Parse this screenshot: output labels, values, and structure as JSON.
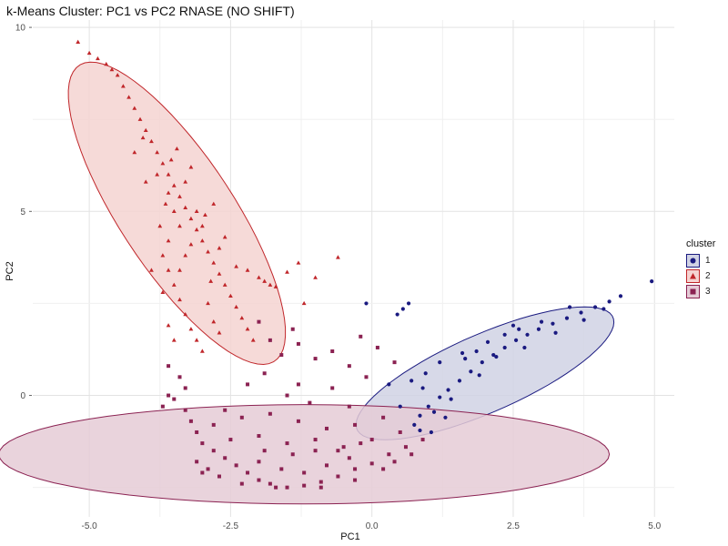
{
  "chart_data": {
    "type": "scatter",
    "title": "k-Means Cluster: PC1 vs PC2 RNASE (NO SHIFT)",
    "xlabel": "PC1",
    "ylabel": "PC2",
    "xlim": [
      -6.0,
      5.35
    ],
    "ylim": [
      -3.3,
      10.2
    ],
    "x_ticks": [
      -5.0,
      -2.5,
      0.0,
      2.5,
      5.0
    ],
    "x_tick_labels": [
      "-5.0",
      "-2.5",
      "0.0",
      "2.5",
      "5.0"
    ],
    "y_ticks": [
      0,
      5,
      10
    ],
    "y_tick_labels": [
      "0",
      "5",
      "10"
    ],
    "grid": true,
    "legend": {
      "title": "cluster",
      "placement": "right"
    },
    "series": [
      {
        "name": "1",
        "marker": "circle",
        "color": "#1a1a80",
        "fill": "#1a1a80",
        "ellipse": {
          "cx": 2.0,
          "cy": 0.6,
          "rx": 2.75,
          "ry": 0.95,
          "angle_deg": 36.5,
          "fill": "#d0d2e4",
          "stroke": "#1a1a80"
        },
        "points": [
          [
            4.95,
            3.1
          ],
          [
            4.4,
            2.7
          ],
          [
            4.2,
            2.55
          ],
          [
            3.95,
            2.4
          ],
          [
            3.7,
            2.25
          ],
          [
            3.45,
            2.1
          ],
          [
            3.2,
            1.95
          ],
          [
            2.95,
            1.8
          ],
          [
            2.75,
            1.65
          ],
          [
            2.55,
            1.5
          ],
          [
            2.35,
            1.3
          ],
          [
            2.15,
            1.1
          ],
          [
            1.95,
            0.9
          ],
          [
            1.75,
            0.65
          ],
          [
            1.55,
            0.4
          ],
          [
            1.35,
            0.15
          ],
          [
            1.2,
            -0.05
          ],
          [
            1.0,
            -0.3
          ],
          [
            0.85,
            -0.55
          ],
          [
            0.75,
            -0.8
          ],
          [
            2.5,
            1.9
          ],
          [
            2.05,
            1.45
          ],
          [
            1.6,
            1.15
          ],
          [
            1.2,
            0.9
          ],
          [
            0.95,
            0.6
          ],
          [
            0.7,
            0.4
          ],
          [
            0.65,
            2.5
          ],
          [
            0.55,
            2.35
          ],
          [
            0.45,
            2.2
          ],
          [
            -0.1,
            2.5
          ],
          [
            0.3,
            0.3
          ],
          [
            0.5,
            -0.3
          ],
          [
            1.65,
            1.0
          ],
          [
            2.2,
            1.05
          ],
          [
            2.7,
            1.3
          ],
          [
            3.25,
            1.7
          ],
          [
            3.75,
            2.05
          ],
          [
            4.1,
            2.35
          ],
          [
            3.5,
            2.4
          ],
          [
            3.0,
            2.0
          ],
          [
            2.6,
            1.8
          ],
          [
            1.9,
            0.55
          ],
          [
            1.4,
            -0.1
          ],
          [
            1.1,
            -0.45
          ],
          [
            0.9,
            0.2
          ],
          [
            2.35,
            1.65
          ],
          [
            1.85,
            1.2
          ],
          [
            0.85,
            -0.95
          ],
          [
            1.05,
            -1.0
          ],
          [
            1.3,
            -0.6
          ]
        ]
      },
      {
        "name": "2",
        "marker": "triangle",
        "color": "#c0262a",
        "fill": "#c0262a",
        "ellipse": {
          "cx": -3.45,
          "cy": 4.95,
          "rx": 4.4,
          "ry": 1.1,
          "angle_deg": 111.7,
          "fill": "#f5d3d1",
          "stroke": "#c0262a"
        },
        "points": [
          [
            -5.2,
            9.6
          ],
          [
            -5.0,
            9.3
          ],
          [
            -4.85,
            9.15
          ],
          [
            -4.7,
            9.0
          ],
          [
            -4.6,
            8.85
          ],
          [
            -4.5,
            8.7
          ],
          [
            -4.4,
            8.4
          ],
          [
            -4.3,
            8.1
          ],
          [
            -4.2,
            7.8
          ],
          [
            -4.1,
            7.5
          ],
          [
            -4.0,
            7.2
          ],
          [
            -3.9,
            6.9
          ],
          [
            -3.8,
            6.6
          ],
          [
            -3.7,
            6.3
          ],
          [
            -3.6,
            6.0
          ],
          [
            -3.5,
            5.7
          ],
          [
            -3.4,
            5.4
          ],
          [
            -3.3,
            5.1
          ],
          [
            -3.2,
            4.8
          ],
          [
            -3.1,
            4.5
          ],
          [
            -3.0,
            4.2
          ],
          [
            -2.9,
            3.9
          ],
          [
            -2.8,
            3.6
          ],
          [
            -2.7,
            3.3
          ],
          [
            -2.6,
            3.0
          ],
          [
            -2.5,
            2.7
          ],
          [
            -2.4,
            2.4
          ],
          [
            -2.3,
            2.1
          ],
          [
            -2.2,
            1.8
          ],
          [
            -2.1,
            1.5
          ],
          [
            -3.8,
            6.0
          ],
          [
            -3.6,
            5.5
          ],
          [
            -3.5,
            5.0
          ],
          [
            -3.4,
            4.6
          ],
          [
            -3.6,
            4.2
          ],
          [
            -3.7,
            3.8
          ],
          [
            -3.6,
            3.4
          ],
          [
            -3.5,
            3.0
          ],
          [
            -3.4,
            2.6
          ],
          [
            -3.3,
            2.2
          ],
          [
            -3.2,
            1.8
          ],
          [
            -3.1,
            1.5
          ],
          [
            -3.0,
            1.2
          ],
          [
            -3.5,
            1.5
          ],
          [
            -3.6,
            1.9
          ],
          [
            -3.3,
            5.8
          ],
          [
            -3.2,
            6.2
          ],
          [
            -3.1,
            5.0
          ],
          [
            -3.0,
            4.6
          ],
          [
            -2.95,
            4.9
          ],
          [
            -2.8,
            5.2
          ],
          [
            -2.7,
            4.0
          ],
          [
            -2.6,
            4.3
          ],
          [
            -2.4,
            3.5
          ],
          [
            -2.2,
            3.4
          ],
          [
            -2.0,
            3.2
          ],
          [
            -1.9,
            3.1
          ],
          [
            -1.8,
            3.0
          ],
          [
            -1.7,
            2.95
          ],
          [
            -1.5,
            3.35
          ],
          [
            -1.3,
            3.6
          ],
          [
            -1.0,
            3.2
          ],
          [
            -0.6,
            3.75
          ],
          [
            -1.2,
            2.5
          ],
          [
            -3.7,
            2.8
          ],
          [
            -3.9,
            3.4
          ],
          [
            -3.75,
            4.6
          ],
          [
            -4.0,
            5.8
          ],
          [
            -4.2,
            6.6
          ],
          [
            -4.05,
            7.0
          ],
          [
            -3.4,
            3.4
          ],
          [
            -3.3,
            3.8
          ],
          [
            -3.2,
            4.1
          ],
          [
            -2.9,
            2.5
          ],
          [
            -2.8,
            2.0
          ],
          [
            -2.7,
            1.7
          ],
          [
            -3.55,
            6.4
          ],
          [
            -3.45,
            6.7
          ],
          [
            -3.65,
            5.2
          ],
          [
            -2.85,
            3.1
          ]
        ]
      },
      {
        "name": "3",
        "marker": "square",
        "color": "#8b2252",
        "fill": "#8b2252",
        "ellipse": {
          "cx": -1.2,
          "cy": -1.6,
          "rx": 5.4,
          "ry": 1.35,
          "angle_deg": 0,
          "fill": "#e5cbd6",
          "stroke": "#8b2252"
        },
        "points": [
          [
            -3.6,
            0.8
          ],
          [
            -3.4,
            0.5
          ],
          [
            -3.3,
            0.2
          ],
          [
            -3.5,
            -0.1
          ],
          [
            -3.3,
            -0.4
          ],
          [
            -3.2,
            -0.7
          ],
          [
            -3.1,
            -1.0
          ],
          [
            -3.0,
            -1.3
          ],
          [
            -2.8,
            -1.5
          ],
          [
            -2.6,
            -1.7
          ],
          [
            -2.4,
            -1.9
          ],
          [
            -2.2,
            -2.1
          ],
          [
            -2.0,
            -2.3
          ],
          [
            -1.8,
            -2.4
          ],
          [
            -1.5,
            -2.5
          ],
          [
            -1.2,
            -2.45
          ],
          [
            -0.9,
            -2.35
          ],
          [
            -0.6,
            -2.2
          ],
          [
            -0.3,
            -2.0
          ],
          [
            0.0,
            -1.85
          ],
          [
            0.3,
            -1.6
          ],
          [
            0.6,
            -1.4
          ],
          [
            0.9,
            -1.2
          ],
          [
            -2.5,
            -1.2
          ],
          [
            -2.0,
            -1.1
          ],
          [
            -1.5,
            -1.3
          ],
          [
            -1.0,
            -1.5
          ],
          [
            -0.5,
            -1.4
          ],
          [
            0.0,
            -1.2
          ],
          [
            0.5,
            -1.0
          ],
          [
            -2.8,
            -0.8
          ],
          [
            -2.3,
            -0.6
          ],
          [
            -1.8,
            -0.5
          ],
          [
            -1.3,
            -0.7
          ],
          [
            -0.8,
            -0.9
          ],
          [
            -0.3,
            -0.8
          ],
          [
            0.2,
            -0.6
          ],
          [
            -2.0,
            -1.8
          ],
          [
            -1.6,
            -2.0
          ],
          [
            -1.2,
            -2.1
          ],
          [
            -0.8,
            -1.9
          ],
          [
            -0.4,
            -1.7
          ],
          [
            -2.9,
            -2.0
          ],
          [
            -3.1,
            -1.8
          ],
          [
            -1.9,
            -1.5
          ],
          [
            -1.0,
            -1.2
          ],
          [
            -0.2,
            -1.3
          ],
          [
            0.4,
            -1.8
          ],
          [
            -3.6,
            0.0
          ],
          [
            -3.7,
            -0.3
          ],
          [
            -2.6,
            -0.4
          ],
          [
            -2.2,
            0.3
          ],
          [
            -1.9,
            0.6
          ],
          [
            -1.5,
            0.0
          ],
          [
            -1.3,
            0.3
          ],
          [
            -1.1,
            -0.2
          ],
          [
            -0.7,
            0.2
          ],
          [
            -0.4,
            -0.3
          ],
          [
            -0.1,
            0.5
          ],
          [
            -1.3,
            1.4
          ],
          [
            -1.6,
            1.1
          ],
          [
            -1.8,
            1.5
          ],
          [
            -2.0,
            2.0
          ],
          [
            -1.4,
            1.8
          ],
          [
            -1.0,
            1.0
          ],
          [
            -0.7,
            1.2
          ],
          [
            -0.4,
            0.8
          ],
          [
            -0.2,
            1.6
          ],
          [
            0.1,
            1.3
          ],
          [
            0.4,
            0.9
          ],
          [
            -2.7,
            -2.2
          ],
          [
            -2.3,
            -2.4
          ],
          [
            -1.7,
            -2.5
          ],
          [
            -0.9,
            -2.5
          ],
          [
            -0.3,
            -2.3
          ],
          [
            0.2,
            -2.0
          ],
          [
            0.7,
            -1.6
          ],
          [
            -3.0,
            -2.1
          ],
          [
            -1.4,
            -1.6
          ],
          [
            -0.6,
            -1.5
          ]
        ]
      }
    ]
  },
  "legend_items": [
    {
      "label": "1",
      "icon": "circle-marker-icon",
      "color": "#1a1a80",
      "bg": "#d0d2e4"
    },
    {
      "label": "2",
      "icon": "triangle-marker-icon",
      "color": "#c0262a",
      "bg": "#f5d3d1"
    },
    {
      "label": "3",
      "icon": "square-marker-icon",
      "color": "#8b2252",
      "bg": "#e5cbd6"
    }
  ]
}
